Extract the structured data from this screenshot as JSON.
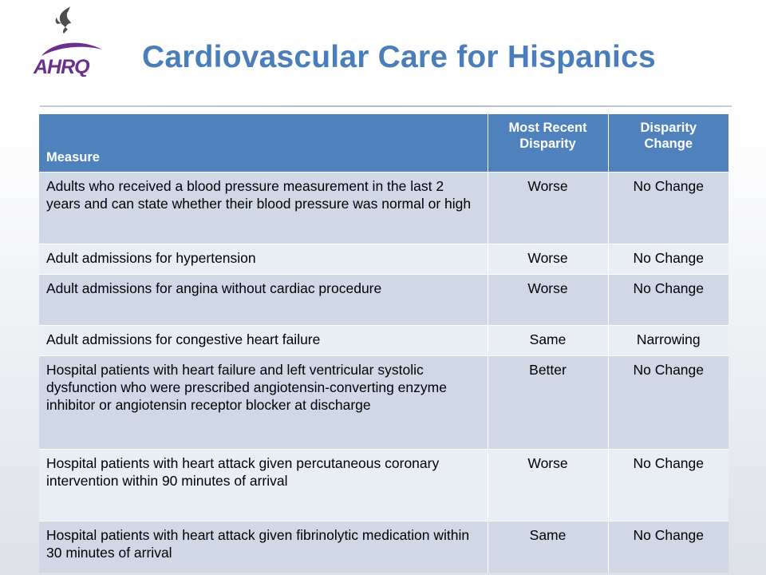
{
  "header": {
    "title": "Cardiovascular Care for Hispanics",
    "logo": {
      "icon": "hhs-eagle-icon",
      "text": "AHRQ",
      "brand_color": "#6b2f8e"
    }
  },
  "colors": {
    "title": "#4a7ebb",
    "header_fill": "#4f81bd",
    "row_dark": "#d0d8e8",
    "row_light": "#e9edf4"
  },
  "table": {
    "columns": [
      "Measure",
      "Most Recent Disparity",
      "Disparity Change"
    ],
    "rows": [
      {
        "measure": "Adults who received a blood pressure measurement in the last 2 years and can state whether their blood pressure was normal or high",
        "recent": "Worse",
        "change": "No Change"
      },
      {
        "measure": "Adult admissions for hypertension",
        "recent": "Worse",
        "change": "No Change"
      },
      {
        "measure": "Adult admissions for angina without cardiac procedure",
        "recent": "Worse",
        "change": "No Change"
      },
      {
        "measure": "Adult admissions for congestive heart failure",
        "recent": "Same",
        "change": "Narrowing"
      },
      {
        "measure": "Hospital patients with heart failure and left ventricular systolic dysfunction who were prescribed angiotensin-converting enzyme inhibitor or angiotensin receptor blocker at discharge",
        "recent": "Better",
        "change": "No Change"
      },
      {
        "measure": "Hospital patients with heart attack given percutaneous coronary intervention within 90 minutes of arrival",
        "recent": "Worse",
        "change": "No Change"
      },
      {
        "measure": "Hospital patients with heart attack given fibrinolytic medication within 30 minutes of arrival",
        "recent": "Same",
        "change": "No Change"
      }
    ]
  }
}
